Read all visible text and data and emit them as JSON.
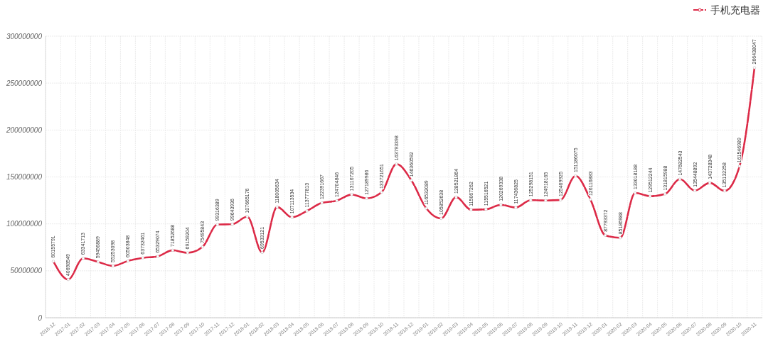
{
  "chart_data": {
    "type": "line",
    "categories": [
      "2016-12",
      "2017-01",
      "2017-02",
      "2017-03",
      "2017-04",
      "2017-05",
      "2017-06",
      "2017-07",
      "2017-08",
      "2017-09",
      "2017-10",
      "2017-11",
      "2017-12",
      "2018-01",
      "2018-02",
      "2018-03",
      "2018-04",
      "2018-05",
      "2018-06",
      "2018-07",
      "2018-08",
      "2018-09",
      "2018-10",
      "2018-11",
      "2018-12",
      "2019-01",
      "2019-02",
      "2019-03",
      "2019-04",
      "2019-05",
      "2019-06",
      "2019-07",
      "2019-08",
      "2019-09",
      "2019-10",
      "2019-11",
      "2019-12",
      "2020-01",
      "2020-02",
      "2020-03",
      "2020-04",
      "2020-05",
      "2020-06",
      "2020-07",
      "2020-08",
      "2020-09",
      "2020-10",
      "2020-11"
    ],
    "series": [
      {
        "name": "手机充电器",
        "color": "#dc2a47",
        "values": [
          60155791,
          40698549,
          63341713,
          59456889,
          55253098,
          60503848,
          63732461,
          65329074,
          71852688,
          69159204,
          75495843,
          99316389,
          99643936,
          107665176,
          69533121,
          118005634,
          107113534,
          113777813,
          122391667,
          124704846,
          131167205,
          127189986,
          133721651,
          163793398,
          146360592,
          116532089,
          105852638,
          128521864,
          115067262,
          115516521,
          120269338,
          117436825,
          125298151,
          124918165,
          125469925,
          151186075,
          126116883,
          87793372,
          85186988,
          133018188,
          129512244,
          131815988,
          147682543,
          135448892,
          143728348,
          135132258,
          161546989,
          266438047
        ]
      }
    ],
    "ylim": [
      0,
      300000000
    ],
    "yticks": [
      0,
      50000000,
      100000000,
      150000000,
      200000000,
      250000000,
      300000000
    ],
    "grid": true,
    "legend": "top right",
    "marker": "circle",
    "line_style": "dashed",
    "data_labels": true
  }
}
